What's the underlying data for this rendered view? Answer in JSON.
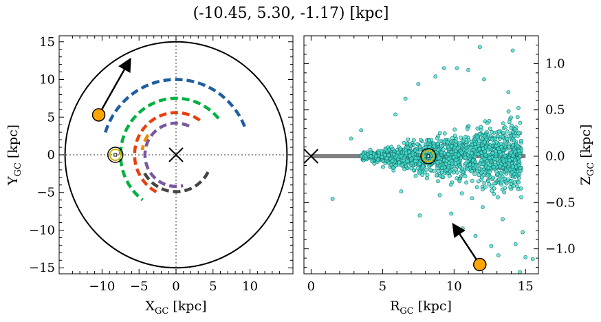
{
  "title": "(-10.45, 5.30, -1.17) [kpc]",
  "chart_data": [
    {
      "type": "line",
      "panel": "left",
      "xlabel": "X",
      "xlabel_sub": "GC",
      "xlabel_unit": " [kpc]",
      "ylabel": "Y",
      "ylabel_sub": "GC",
      "ylabel_unit": " [kpc]",
      "xlim": [
        -15.8,
        15.8
      ],
      "ylim": [
        -15.8,
        15.8
      ],
      "xticks": [
        -10,
        -5,
        0,
        5,
        10
      ],
      "yticks": [
        -15,
        -10,
        -5,
        0,
        5,
        10,
        15
      ],
      "xtick_labels": [
        "−10",
        "−5",
        "0",
        "5",
        "10"
      ],
      "ytick_labels": [
        "−15",
        "−10",
        "−5",
        "0",
        "5",
        "10",
        "15"
      ],
      "boundary_circle_radius": 15,
      "galactic_center": [
        0,
        0
      ],
      "sun": [
        -8.2,
        0
      ],
      "object": [
        -10.45,
        5.3
      ],
      "velocity_arrow_tip": [
        -6.3,
        12.5
      ],
      "arms": [
        {
          "color": "#1f5fa0",
          "radius": 10.0,
          "start_deg": 22,
          "end_deg": 165
        },
        {
          "color": "#00b140",
          "radius": 7.5,
          "start_deg": 40,
          "end_deg": 233
        },
        {
          "color": "#f08c00",
          "radius": 4.6,
          "start_deg": 145,
          "end_deg": 172
        },
        {
          "color": "#e8400c",
          "radius": 5.6,
          "start_deg": 55,
          "end_deg": 242
        },
        {
          "color": "#7b57a0",
          "radius": 4.2,
          "start_deg": 65,
          "end_deg": 283
        },
        {
          "color": "#444444",
          "radius": 4.9,
          "start_deg": 210,
          "end_deg": 335
        }
      ]
    },
    {
      "type": "scatter",
      "panel": "right",
      "xlabel": "R",
      "xlabel_sub": "GC",
      "xlabel_unit": " [kpc]",
      "ylabel": "Z",
      "ylabel_sub": "GC",
      "ylabel_unit": " [kpc]",
      "xlim": [
        -0.5,
        15.9
      ],
      "ylim": [
        -1.27,
        1.3
      ],
      "xticks": [
        0,
        5,
        10,
        15
      ],
      "yticks": [
        1.0,
        0.5,
        0.0,
        -0.5,
        -1.0
      ],
      "xtick_labels": [
        "0",
        "5",
        "10",
        "15"
      ],
      "ytick_labels": [
        "1.0",
        "0.5",
        "0.0",
        "−0.5",
        "−1.0"
      ],
      "disk_line": {
        "r_min": 0,
        "r_max": 15,
        "z": 0,
        "color": "#808080"
      },
      "galactic_center": [
        0,
        0
      ],
      "sun": [
        8.2,
        0
      ],
      "object": [
        11.8,
        -1.17
      ],
      "velocity_arrow_tip": [
        10.0,
        -0.75
      ],
      "scatter_color": "#40e0d0",
      "scatter_edge": "#1a6b66",
      "scatter_points_sample": [
        [
          11.8,
          1.18
        ],
        [
          14.1,
          1.14
        ],
        [
          10.2,
          0.95
        ],
        [
          9.3,
          0.95
        ],
        [
          11.0,
          0.93
        ],
        [
          8.7,
          0.86
        ],
        [
          12.1,
          0.83
        ],
        [
          7.5,
          0.78
        ],
        [
          13.8,
          0.69
        ],
        [
          6.6,
          0.62
        ],
        [
          5.9,
          0.45
        ],
        [
          14.5,
          0.52
        ],
        [
          3.5,
          0.28
        ],
        [
          2.8,
          0.19
        ],
        [
          1.5,
          -0.46
        ],
        [
          6.3,
          -0.38
        ],
        [
          7.6,
          -0.64
        ],
        [
          9.0,
          -0.42
        ],
        [
          12.0,
          -0.55
        ],
        [
          13.4,
          -0.68
        ],
        [
          14.8,
          -0.82
        ],
        [
          14.3,
          -0.95
        ],
        [
          15.0,
          -1.09
        ],
        [
          15.5,
          -1.11
        ],
        [
          12.6,
          -0.97
        ],
        [
          11.5,
          -0.86
        ],
        [
          10.6,
          -0.78
        ],
        [
          14.6,
          -1.25
        ],
        [
          13.1,
          -1.07
        ],
        [
          9.8,
          -0.62
        ]
      ]
    }
  ]
}
